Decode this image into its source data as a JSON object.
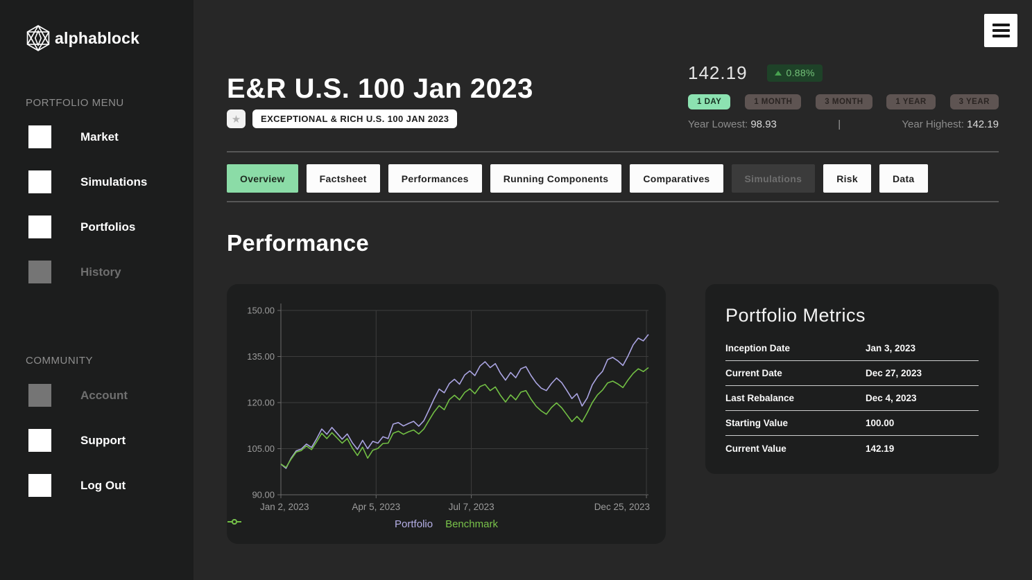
{
  "brand": {
    "name": "alphablock"
  },
  "sidebar": {
    "portfolio_menu_label": "PORTFOLIO MENU",
    "community_label": "COMMUNITY",
    "portfolio_items": [
      {
        "label": "Market",
        "disabled": false
      },
      {
        "label": "Simulations",
        "disabled": false
      },
      {
        "label": "Portfolios",
        "disabled": false
      },
      {
        "label": "History",
        "disabled": true
      }
    ],
    "community_items": [
      {
        "label": "Account",
        "disabled": true
      },
      {
        "label": "Support",
        "disabled": false
      },
      {
        "label": "Log Out",
        "disabled": false
      }
    ]
  },
  "header": {
    "title": "E&R U.S. 100 Jan 2023",
    "star_icon": "star-icon",
    "subtitle_badge": "EXCEPTIONAL & RICH U.S. 100 JAN 2023",
    "price": "142.19",
    "change_pct": "0.88%",
    "change_direction": "up",
    "periods": [
      "1 DAY",
      "1 MONTH",
      "3 MONTH",
      "1 YEAR",
      "3 YEAR"
    ],
    "active_period": "1 DAY",
    "year_lowest_label": "Year Lowest:",
    "year_lowest_value": "98.93",
    "separator": "|",
    "year_highest_label": "Year Highest:",
    "year_highest_value": "142.19"
  },
  "tabs": [
    {
      "label": "Overview",
      "state": "active"
    },
    {
      "label": "Factsheet",
      "state": "normal"
    },
    {
      "label": "Performances",
      "state": "normal"
    },
    {
      "label": "Running Components",
      "state": "normal"
    },
    {
      "label": "Comparatives",
      "state": "normal"
    },
    {
      "label": "Simulations",
      "state": "disabled"
    },
    {
      "label": "Risk",
      "state": "normal"
    },
    {
      "label": "Data",
      "state": "normal"
    }
  ],
  "section_title": "Performance",
  "metrics": {
    "title": "Portfolio Metrics",
    "rows": [
      {
        "label": "Inception Date",
        "value": "Jan 3, 2023"
      },
      {
        "label": "Current Date",
        "value": "Dec 27, 2023"
      },
      {
        "label": "Last Rebalance",
        "value": "Dec 4, 2023"
      },
      {
        "label": "Starting Value",
        "value": "100.00"
      },
      {
        "label": "Current Value",
        "value": "142.19"
      }
    ]
  },
  "chart_data": {
    "type": "line",
    "x_axis": {
      "tick_labels": [
        "Jan 2, 2023",
        "Apr 5, 2023",
        "Jul 7, 2023",
        "Dec 25, 2023"
      ],
      "tick_days": [
        0,
        93,
        186,
        357
      ],
      "total_days": 359
    },
    "y_axis": {
      "ticks": [
        150,
        135,
        120,
        105,
        90
      ],
      "ylim": [
        90,
        150
      ],
      "format": "0.00"
    },
    "grid": true,
    "legend_position": "bottom-center",
    "legend": [
      {
        "name": "Portfolio",
        "color": "#aba5e3"
      },
      {
        "name": "Benchmark",
        "color": "#72bf44"
      }
    ],
    "series": [
      {
        "name": "Portfolio",
        "color": "#aba5e3",
        "values": [
          100.0,
          98.6,
          101.9,
          104.3,
          104.9,
          106.5,
          105.4,
          108.2,
          111.4,
          109.7,
          111.9,
          110.0,
          108.1,
          109.8,
          106.9,
          104.8,
          107.7,
          105.0,
          107.4,
          106.8,
          108.9,
          108.3,
          113.0,
          113.5,
          112.4,
          113.2,
          113.9,
          112.3,
          114.1,
          117.6,
          121.2,
          124.4,
          123.2,
          126.2,
          127.6,
          126.0,
          129.0,
          130.3,
          128.8,
          131.9,
          133.3,
          131.4,
          132.7,
          129.6,
          127.3,
          129.8,
          128.1,
          131.0,
          131.7,
          128.8,
          126.4,
          124.7,
          123.9,
          126.2,
          128.0,
          126.5,
          124.0,
          121.3,
          122.9,
          118.9,
          121.5,
          125.8,
          128.4,
          130.2,
          134.0,
          134.7,
          133.6,
          132.1,
          135.2,
          138.8,
          141.0,
          140.1,
          142.19
        ]
      },
      {
        "name": "Benchmark",
        "color": "#72bf44",
        "values": [
          100.0,
          98.9,
          101.6,
          103.9,
          104.4,
          105.9,
          104.7,
          107.2,
          110.0,
          108.3,
          110.2,
          108.5,
          106.8,
          108.3,
          105.2,
          102.8,
          105.5,
          101.9,
          104.5,
          105.1,
          106.7,
          106.8,
          110.0,
          110.7,
          109.7,
          110.5,
          111.1,
          109.8,
          111.4,
          114.2,
          116.9,
          119.0,
          117.7,
          121.0,
          122.4,
          120.9,
          123.3,
          124.5,
          122.9,
          125.2,
          125.9,
          123.9,
          125.1,
          122.4,
          120.2,
          122.5,
          120.9,
          123.4,
          123.9,
          121.1,
          118.8,
          117.3,
          116.2,
          118.4,
          119.9,
          118.3,
          116.1,
          113.8,
          115.5,
          113.7,
          116.7,
          120.0,
          122.5,
          124.1,
          126.4,
          127.0,
          126.1,
          124.9,
          127.4,
          129.5,
          131.0,
          130.1,
          131.4
        ]
      }
    ]
  },
  "colors": {
    "page_bg": "#272727",
    "sidebar_bg": "#1c1d1d",
    "card_bg": "#1d1e1e",
    "accent_mint": "#8ce2b1",
    "badge_green_bg": "#1e4228",
    "badge_green_text": "#74c279",
    "portfolio_line": "#aba5e3",
    "benchmark_line": "#72bf44"
  }
}
